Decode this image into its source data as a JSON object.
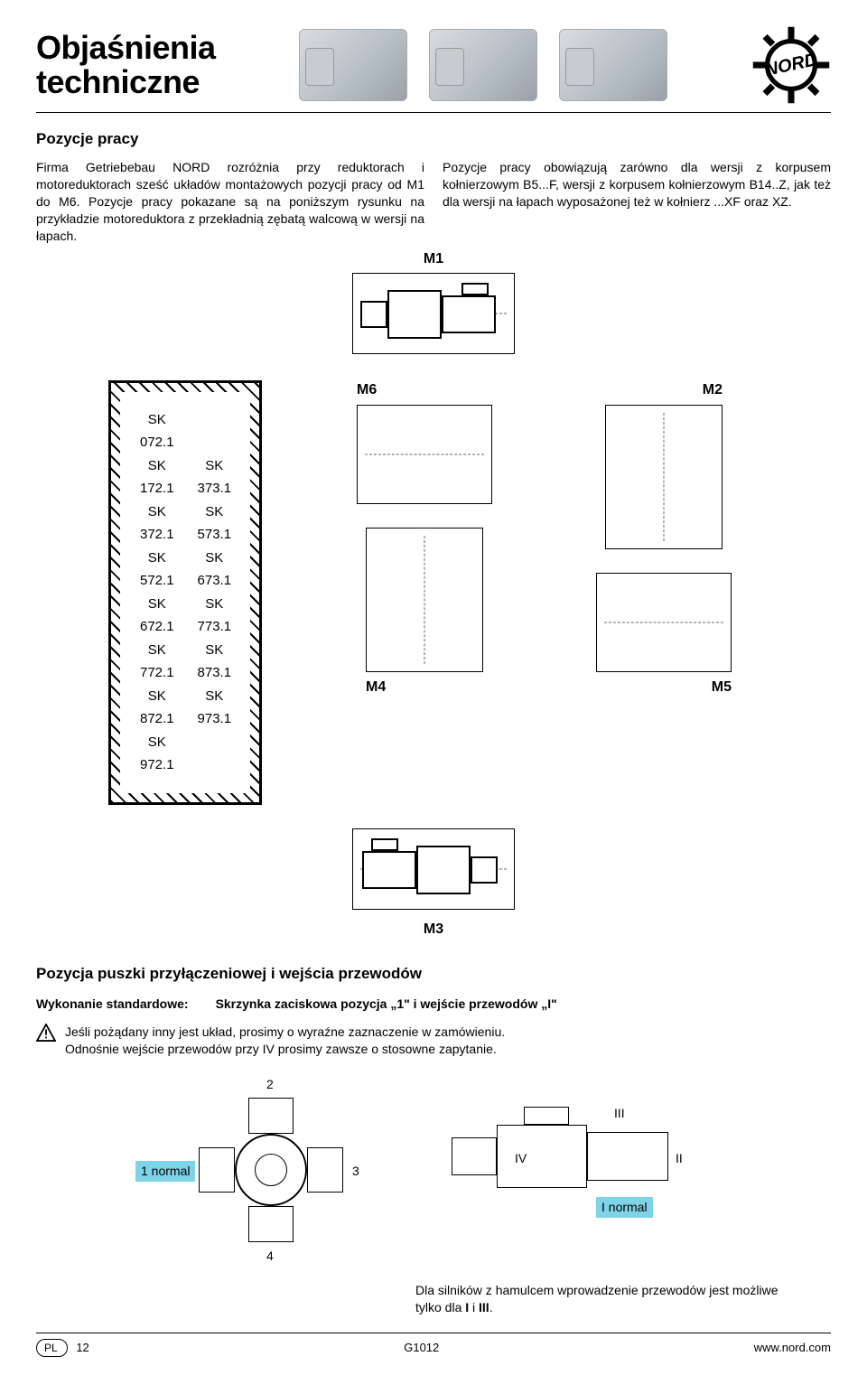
{
  "header": {
    "title_line1": "Objaśnienia",
    "title_line2": "techniczne",
    "logo_text": "NORD"
  },
  "section1": {
    "title": "Pozycje pracy",
    "para_left": "Firma Getriebebau NORD rozróżnia przy reduktorach i motoreduktorach sześć układów montażowych pozycji pracy od M1 do M6. Pozycje pracy pokazane są na poniższym rysunku na przykładzie motoreduktora z przekładnią zębatą walcową w wersji na łapach.",
    "para_right": "Pozycje pracy obowiązują zarówno dla wersji z korpusem kołnierzowym B5...F, wersji z korpusem kołnierzowym B14..Z, jak też dla wersji na łapach wyposażonej też w kołnierz ...XF oraz XZ."
  },
  "positions": {
    "m1": "M1",
    "m2": "M2",
    "m3": "M3",
    "m4": "M4",
    "m5": "M5",
    "m6": "M6"
  },
  "sk_list": {
    "col1": [
      "SK 072.1",
      "SK 172.1",
      "SK 372.1",
      "SK 572.1",
      "SK 672.1",
      "SK 772.1",
      "SK 872.1",
      "SK 972.1"
    ],
    "col2": [
      "SK 373.1",
      "SK 573.1",
      "SK 673.1",
      "SK 773.1",
      "SK 873.1",
      "SK 973.1"
    ]
  },
  "section2": {
    "title": "Pozycja puszki przyłączeniowej i wejścia przewodów",
    "std_label": "Wykonanie standardowe:",
    "std_value": "Skrzynka zaciskowa pozycja „1\" i wejście przewodów „I\"",
    "warn_line1": "Jeśli pożądany inny jest układ, prosimy o wyraźne zaznaczenie w zamówieniu.",
    "warn_line2": "Odnośnie wejście przewodów przy IV prosimy zawsze o stosowne zapytanie."
  },
  "terminal": {
    "n1": "1 normal",
    "n2": "2",
    "n3": "3",
    "n4": "4",
    "rI": "I normal",
    "rII": "II",
    "rIII": "III",
    "rIV": "IV",
    "highlight_color": "#7fd3e6"
  },
  "footer_note": "Dla silników z hamulcem wprowadzenie przewodów jest możliwe tylko dla I i III.",
  "footer_note_bold": [
    "I",
    "III"
  ],
  "footer": {
    "left_badge": "PL",
    "left_page": "12",
    "center": "G1012",
    "right": "www.nord.com"
  }
}
